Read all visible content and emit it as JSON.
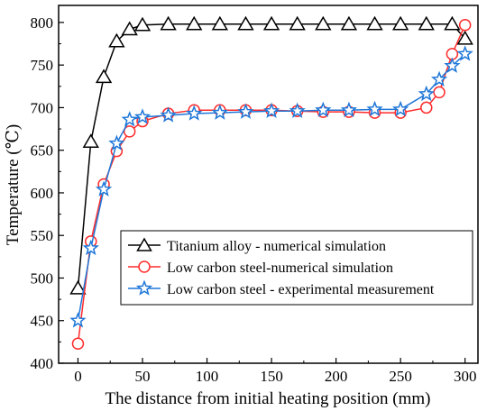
{
  "chart_data": {
    "type": "line",
    "xlabel": "The distance from initial heating position (mm)",
    "ylabel": "Temperature (℃)",
    "xlim": [
      -15,
      310
    ],
    "ylim": [
      400,
      820
    ],
    "xticks": [
      0,
      50,
      100,
      150,
      200,
      250,
      300
    ],
    "yticks": [
      400,
      450,
      500,
      550,
      600,
      650,
      700,
      750,
      800
    ],
    "legend_position": "center-right",
    "series": [
      {
        "name": "Titanium alloy - numerical simulation",
        "color": "#000000",
        "marker": "triangle",
        "x": [
          0,
          10,
          20,
          30,
          40,
          50,
          70,
          90,
          110,
          130,
          150,
          170,
          190,
          210,
          230,
          250,
          270,
          290,
          300
        ],
        "y": [
          488,
          660,
          736,
          778,
          792,
          797,
          798,
          798,
          798,
          798,
          798,
          798,
          798,
          798,
          798,
          798,
          798,
          798,
          781
        ]
      },
      {
        "name": "Low carbon steel-numerical simulation",
        "color": "#ff2b2b",
        "marker": "circle",
        "x": [
          0,
          10,
          20,
          30,
          40,
          50,
          70,
          90,
          110,
          130,
          150,
          170,
          190,
          210,
          230,
          250,
          270,
          280,
          290,
          300
        ],
        "y": [
          423,
          543,
          610,
          649,
          672,
          684,
          693,
          697,
          697,
          697,
          697,
          696,
          695,
          695,
          694,
          694,
          700,
          718,
          763,
          797
        ]
      },
      {
        "name": "Low carbon steel - experimental measurement",
        "color": "#1f77d8",
        "marker": "star",
        "x": [
          0,
          10,
          20,
          30,
          40,
          50,
          70,
          90,
          110,
          130,
          150,
          170,
          190,
          210,
          230,
          250,
          270,
          280,
          290,
          300
        ],
        "y": [
          450,
          535,
          604,
          658,
          686,
          689,
          691,
          693,
          694,
          695,
          696,
          696,
          697,
          697,
          698,
          698,
          716,
          733,
          749,
          763
        ]
      }
    ]
  }
}
